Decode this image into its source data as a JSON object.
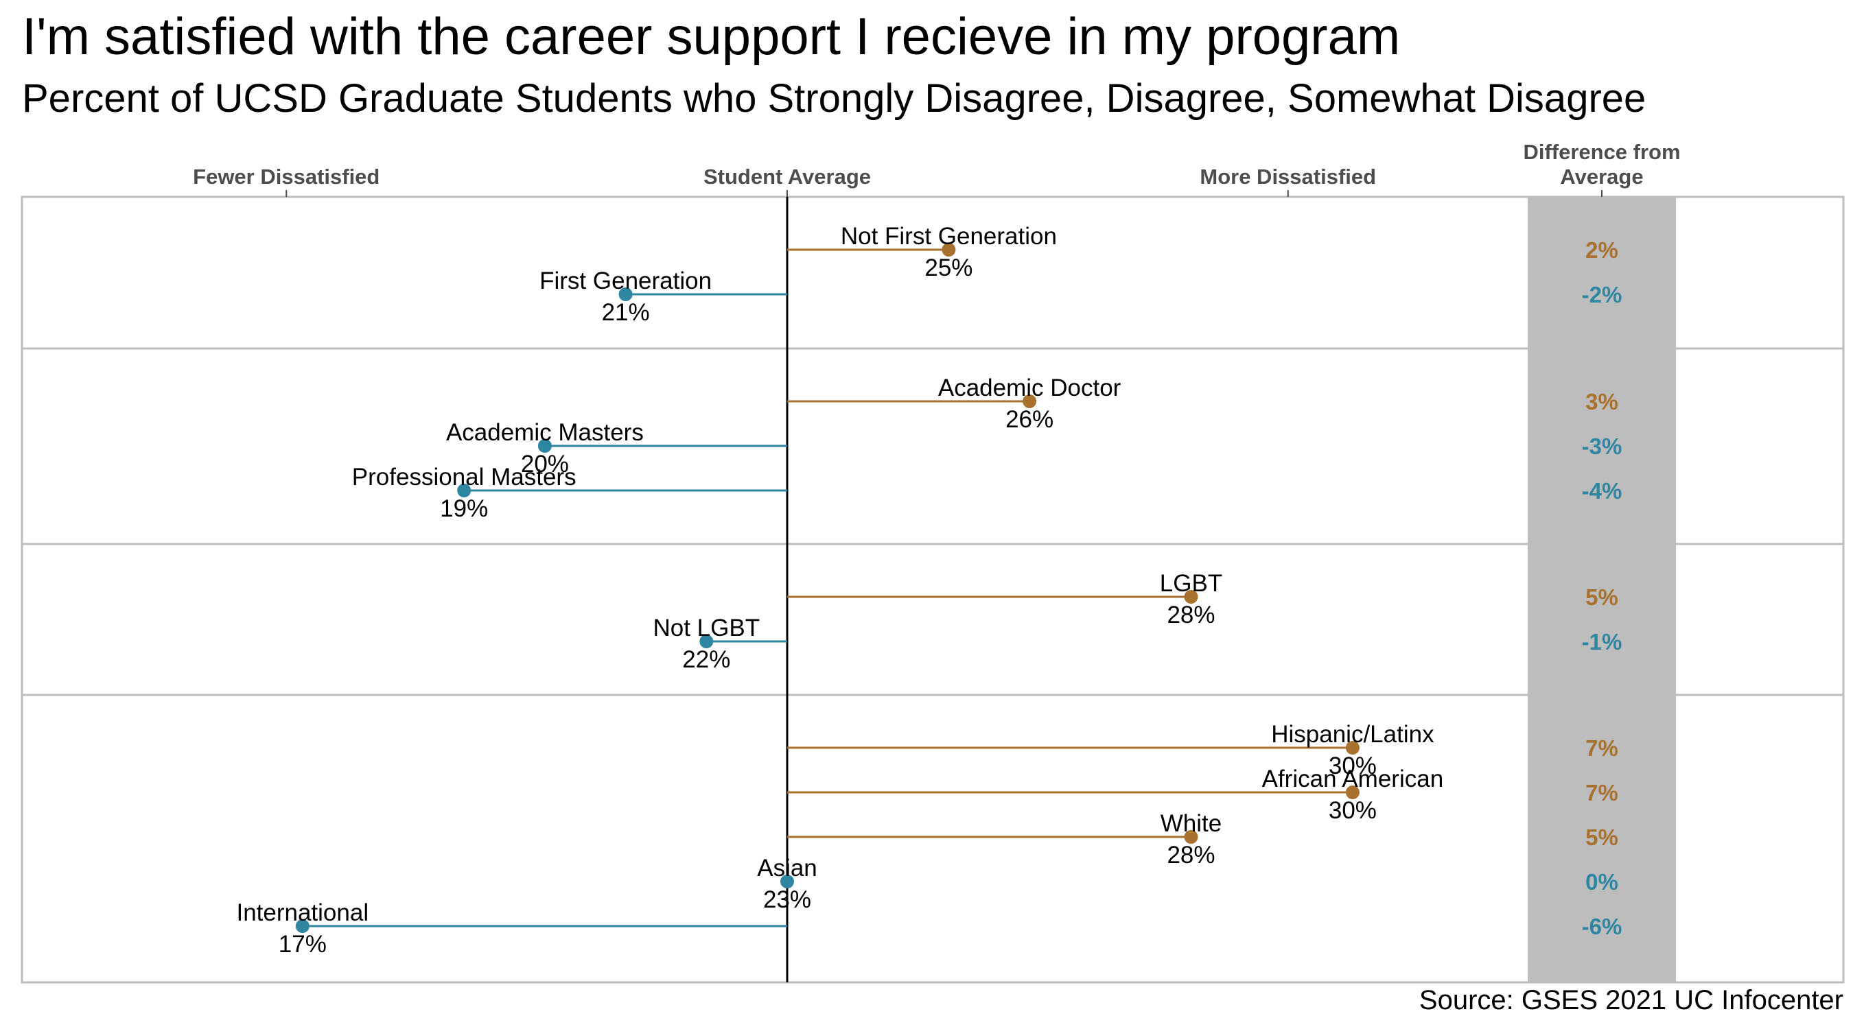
{
  "title": "I'm satisfied with the career support I recieve in my program",
  "subtitle": "Percent of UCSD Graduate Students who Strongly Disagree, Disagree, Somewhat Disagree",
  "source": "Source: GSES 2021 UC Infocenter",
  "colors": {
    "above": "#A8712E",
    "below": "#2E86A0",
    "diff_panel": "#BDBDBD",
    "panel_border": "#BDBDBD"
  },
  "chart_data": {
    "type": "lollipop",
    "reference_label": "Student Average",
    "reference_value": 23,
    "axis_labels": {
      "left": "Fewer Dissatisfied",
      "center": "Student Average",
      "right": "More Dissatisfied"
    },
    "diff_header": [
      "Difference from",
      "Average"
    ],
    "groups": [
      {
        "items": [
          {
            "label": "Not First Generation",
            "value": 25,
            "value_label": "25%",
            "diff_label": "2%",
            "direction": "above"
          },
          {
            "label": "First Generation",
            "value": 21,
            "value_label": "21%",
            "diff_label": "-2%",
            "direction": "below"
          }
        ]
      },
      {
        "items": [
          {
            "label": "Academic Doctor",
            "value": 26,
            "value_label": "26%",
            "diff_label": "3%",
            "direction": "above"
          },
          {
            "label": "Academic Masters",
            "value": 20,
            "value_label": "20%",
            "diff_label": "-3%",
            "direction": "below"
          },
          {
            "label": "Professional Masters",
            "value": 19,
            "value_label": "19%",
            "diff_label": "-4%",
            "direction": "below"
          }
        ]
      },
      {
        "items": [
          {
            "label": "LGBT",
            "value": 28,
            "value_label": "28%",
            "diff_label": "5%",
            "direction": "above"
          },
          {
            "label": "Not LGBT",
            "value": 22,
            "value_label": "22%",
            "diff_label": "-1%",
            "direction": "below"
          }
        ]
      },
      {
        "items": [
          {
            "label": "Hispanic/Latinx",
            "value": 30,
            "value_label": "30%",
            "diff_label": "7%",
            "direction": "above"
          },
          {
            "label": "African American",
            "value": 30,
            "value_label": "30%",
            "diff_label": "7%",
            "direction": "above"
          },
          {
            "label": "White",
            "value": 28,
            "value_label": "28%",
            "diff_label": "5%",
            "direction": "above"
          },
          {
            "label": "Asian",
            "value": 23,
            "value_label": "23%",
            "diff_label": "0%",
            "direction": "below"
          },
          {
            "label": "International",
            "value": 17,
            "value_label": "17%",
            "diff_label": "-6%",
            "direction": "below"
          }
        ]
      }
    ]
  }
}
